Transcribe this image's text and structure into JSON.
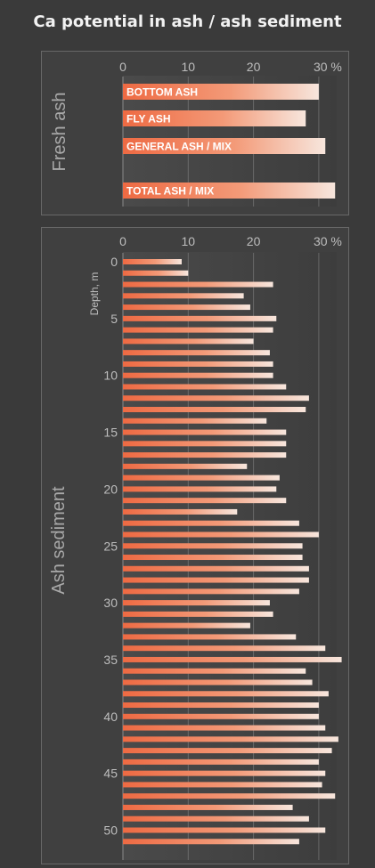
{
  "title": "Ca potential in ash / ash sediment",
  "panels": {
    "fresh_label": "Fresh ash",
    "sediment_label": "Ash sediment"
  },
  "colors": {
    "background": "#3a3a3a",
    "bar_left": "#ee6a43",
    "bar_right": "#f7e6dd",
    "tick_text": "#bdbdbd",
    "gridline": "#7a7a7a"
  },
  "chart_data": [
    {
      "type": "bar",
      "orientation": "horizontal",
      "title": "",
      "xlabel": "",
      "ylabel": "",
      "x_ticks": [
        "0",
        "10",
        "20",
        "30 %"
      ],
      "xlim": [
        0,
        33
      ],
      "categories": [
        "BOTTOM ASH",
        "FLY ASH",
        "GENERAL ASH / MIX",
        "TOTAL ASH / MIX"
      ],
      "values": [
        30,
        28,
        31,
        32.5
      ],
      "bar_labels_inside": true
    },
    {
      "type": "bar",
      "orientation": "horizontal",
      "title": "",
      "xlabel": "",
      "ylabel": "Depth, m",
      "x_ticks": [
        "0",
        "10",
        "20",
        "30 %"
      ],
      "xlim": [
        0,
        33
      ],
      "y_ticks": [
        "0",
        "5",
        "10",
        "15",
        "20",
        "25",
        "30",
        "35",
        "40",
        "45",
        "50"
      ],
      "ylim": [
        0,
        51
      ],
      "depths": [
        0,
        1,
        2,
        3,
        4,
        5,
        6,
        7,
        8,
        9,
        10,
        11,
        12,
        13,
        14,
        15,
        16,
        17,
        18,
        19,
        20,
        21,
        22,
        23,
        24,
        25,
        26,
        27,
        28,
        29,
        30,
        31,
        32,
        33,
        34,
        35,
        36,
        37,
        38,
        39,
        40,
        41,
        42,
        43,
        44,
        45,
        46,
        47,
        48,
        49,
        50,
        51
      ],
      "values": [
        9,
        10,
        23,
        18.5,
        19.5,
        23.5,
        23,
        20,
        22.5,
        23,
        23,
        25,
        28.5,
        28,
        22,
        25,
        25,
        25,
        19,
        24,
        23.5,
        25,
        17.5,
        27,
        30,
        27.5,
        27.5,
        28.5,
        28.5,
        27,
        22.5,
        23,
        19.5,
        26.5,
        31,
        33.5,
        28,
        29,
        31.5,
        30,
        30,
        31,
        33,
        32,
        30,
        31,
        30.5,
        32.5,
        26,
        28.5,
        31,
        27
      ]
    }
  ]
}
